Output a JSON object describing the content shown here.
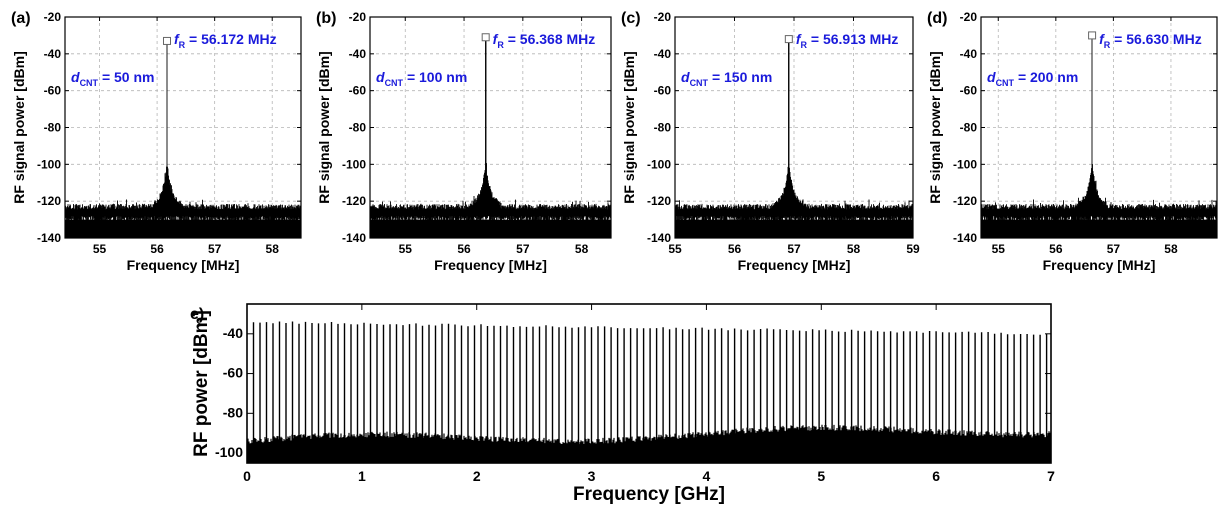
{
  "chart_data": [
    {
      "panel_label": "(a)",
      "type": "line",
      "xlabel": "Frequency [MHz]",
      "ylabel": "RF signal power [dBm]",
      "xlim": [
        54.4,
        58.5
      ],
      "ylim": [
        -140,
        -20
      ],
      "xticks": [
        55,
        56,
        57,
        58
      ],
      "yticks": [
        -140,
        -120,
        -100,
        -80,
        -60,
        -40,
        -20
      ],
      "grid": true,
      "noise_floor": -127,
      "noise_top": -123,
      "peak": {
        "x": 56.172,
        "y": -33
      },
      "annotation_freq": {
        "symbol": "f",
        "subscript": "R",
        "text": " = 56.172 MHz"
      },
      "annotation_d": {
        "symbol": "d",
        "subscript": "CNT",
        "text": " = 50 nm"
      }
    },
    {
      "panel_label": "(b)",
      "type": "line",
      "xlabel": "Frequency [MHz]",
      "ylabel": "RF signal power [dBm]",
      "xlim": [
        54.4,
        58.5
      ],
      "ylim": [
        -140,
        -20
      ],
      "xticks": [
        55,
        56,
        57,
        58
      ],
      "yticks": [
        -140,
        -120,
        -100,
        -80,
        -60,
        -40,
        -20
      ],
      "grid": true,
      "noise_floor": -127,
      "noise_top": -123,
      "peak": {
        "x": 56.368,
        "y": -31
      },
      "annotation_freq": {
        "symbol": "f",
        "subscript": "R",
        "text": " = 56.368 MHz"
      },
      "annotation_d": {
        "symbol": "d",
        "subscript": "CNT",
        "text": " = 100 nm"
      }
    },
    {
      "panel_label": "(c)",
      "type": "line",
      "xlabel": "Frequency [MHz]",
      "ylabel": "RF signal power [dBm]",
      "xlim": [
        55,
        59
      ],
      "ylim": [
        -140,
        -20
      ],
      "xticks": [
        55,
        56,
        57,
        58,
        59
      ],
      "yticks": [
        -140,
        -120,
        -100,
        -80,
        -60,
        -40,
        -20
      ],
      "grid": true,
      "noise_floor": -127,
      "noise_top": -123,
      "peak": {
        "x": 56.913,
        "y": -32
      },
      "annotation_freq": {
        "symbol": "f",
        "subscript": "R",
        "text": " = 56.913 MHz"
      },
      "annotation_d": {
        "symbol": "d",
        "subscript": "CNT",
        "text": " = 150 nm"
      }
    },
    {
      "panel_label": "(d)",
      "type": "line",
      "xlabel": "Frequency [MHz]",
      "ylabel": "RF signal power [dBm]",
      "xlim": [
        54.7,
        58.8
      ],
      "ylim": [
        -140,
        -20
      ],
      "xticks": [
        55,
        56,
        57,
        58
      ],
      "yticks": [
        -140,
        -120,
        -100,
        -80,
        -60,
        -40,
        -20
      ],
      "grid": true,
      "noise_floor": -127,
      "noise_top": -123,
      "peak": {
        "x": 56.63,
        "y": -30
      },
      "annotation_freq": {
        "symbol": "f",
        "subscript": "R",
        "text": " = 56.630 MHz"
      },
      "annotation_d": {
        "symbol": "d",
        "subscript": "CNT",
        "text": " = 200 nm"
      }
    },
    {
      "panel_label": "e)",
      "type": "line",
      "xlabel": "Frequency [GHz]",
      "ylabel": "RF power [dBm]",
      "xlim": [
        0,
        7
      ],
      "ylim": [
        -105,
        -25
      ],
      "xticks": [
        0,
        1,
        2,
        3,
        4,
        5,
        6,
        7
      ],
      "yticks": [
        -100,
        -80,
        -60,
        -40
      ],
      "grid": false,
      "comb_spacing_ghz": 0.0566,
      "comb_peak_start": -34,
      "comb_peak_end": -40,
      "noise_floor_start": -94,
      "noise_floor_end": -88
    }
  ]
}
